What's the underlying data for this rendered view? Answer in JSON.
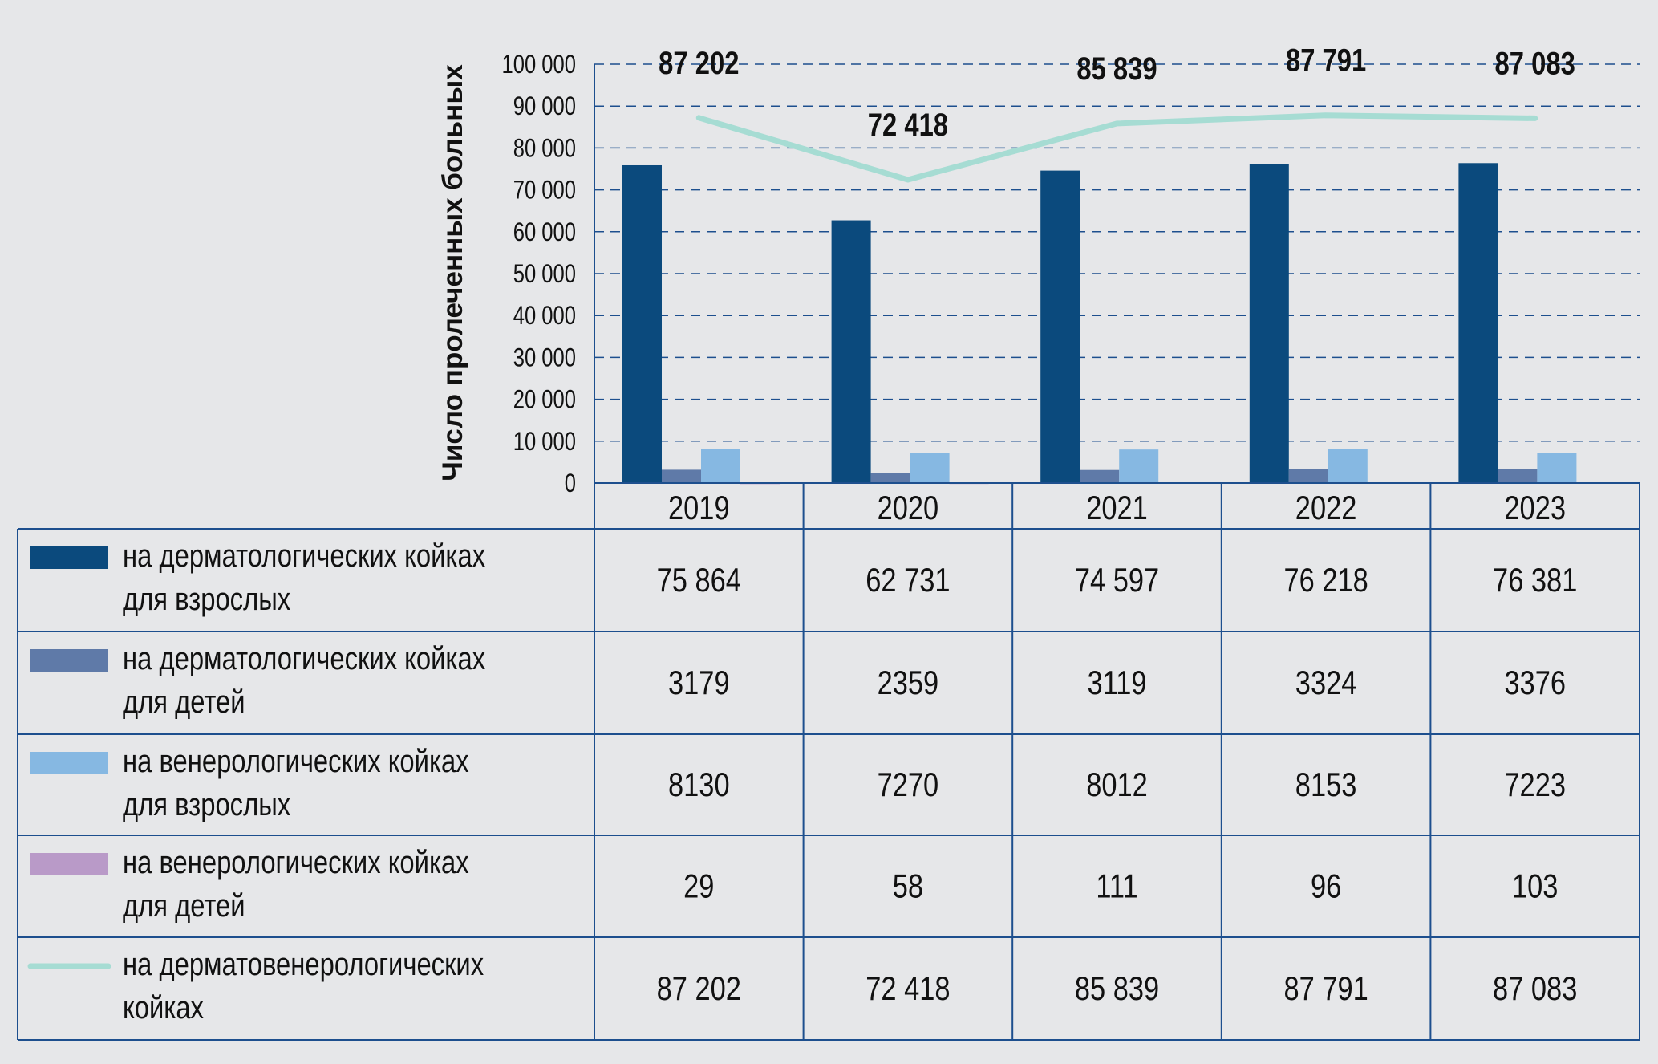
{
  "chart_data": {
    "type": "bar",
    "title": "",
    "ylabel": "Число пролеченных больных",
    "xlabel": "",
    "ylim": [
      0,
      100000
    ],
    "yticks": [
      "0",
      "10 000",
      "20 000",
      "30 000",
      "40 000",
      "50 000",
      "60 000",
      "70 000",
      "80 000",
      "90 000",
      "100 000"
    ],
    "ytick_values": [
      0,
      10000,
      20000,
      30000,
      40000,
      50000,
      60000,
      70000,
      80000,
      90000,
      100000
    ],
    "grid": true,
    "categories": [
      "2019",
      "2020",
      "2021",
      "2022",
      "2023"
    ],
    "series": [
      {
        "name": [
          "на дерматологических койках",
          "для взрослых"
        ],
        "kind": "bar",
        "color": "#0b4a7d",
        "values": [
          75864,
          62731,
          74597,
          76218,
          76381
        ],
        "labels": [
          "75 864",
          "62 731",
          "74 597",
          "76 218",
          "76 381"
        ]
      },
      {
        "name": [
          "на дерматологических койках",
          "для детей"
        ],
        "kind": "bar",
        "color": "#5f7aa8",
        "values": [
          3179,
          2359,
          3119,
          3324,
          3376
        ],
        "labels": [
          "3179",
          "2359",
          "3119",
          "3324",
          "3376"
        ]
      },
      {
        "name": [
          "на венерологических койках",
          "для взрослых"
        ],
        "kind": "bar",
        "color": "#86b8e2",
        "values": [
          8130,
          7270,
          8012,
          8153,
          7223
        ],
        "labels": [
          "8130",
          "7270",
          "8012",
          "8153",
          "7223"
        ]
      },
      {
        "name": [
          "на венерологических койках",
          "для детей"
        ],
        "kind": "bar",
        "color": "#b99ac8",
        "values": [
          29,
          58,
          111,
          96,
          103
        ],
        "labels": [
          "29",
          "58",
          "111",
          "96",
          "103"
        ]
      },
      {
        "name": [
          "на дерматовенерологических",
          "койках"
        ],
        "kind": "line",
        "color": "#a6dcd3",
        "values": [
          87202,
          72418,
          85839,
          87791,
          87083
        ],
        "labels": [
          "87 202",
          "72 418",
          "85 839",
          "87 791",
          "87 083"
        ]
      }
    ],
    "legend_placement": "table-below"
  }
}
